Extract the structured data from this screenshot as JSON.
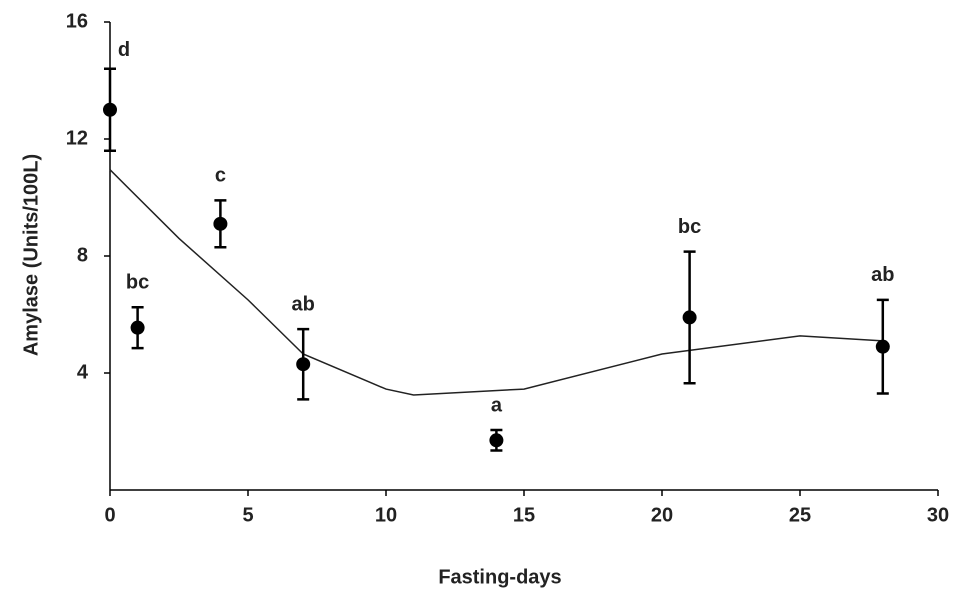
{
  "chart_data": {
    "type": "scatter",
    "x_label": "Fasting-days",
    "y_label": "Amylase (Units/100L)",
    "x": [
      0,
      1,
      4,
      7,
      14,
      21,
      28
    ],
    "values": [
      13.0,
      5.55,
      9.1,
      4.3,
      1.7,
      5.9,
      4.9
    ],
    "errors": [
      1.4,
      0.7,
      0.8,
      1.2,
      0.35,
      2.25,
      1.6
    ],
    "value_labels": [
      "d",
      "bc",
      "c",
      "ab",
      "a",
      "bc",
      "ab"
    ],
    "color": "#000000",
    "trend": {
      "x": [
        0,
        2.5,
        5,
        7,
        10,
        11,
        15,
        20,
        25,
        28
      ],
      "values": [
        10.95,
        8.6,
        6.5,
        4.65,
        3.45,
        3.25,
        3.45,
        4.65,
        5.27,
        5.1
      ]
    },
    "xlim": [
      0,
      30
    ],
    "xticks": [
      0,
      5,
      10,
      15,
      20,
      25,
      30
    ],
    "ylim": [
      0,
      16
    ],
    "yticks": [
      4,
      8,
      12,
      16
    ]
  }
}
